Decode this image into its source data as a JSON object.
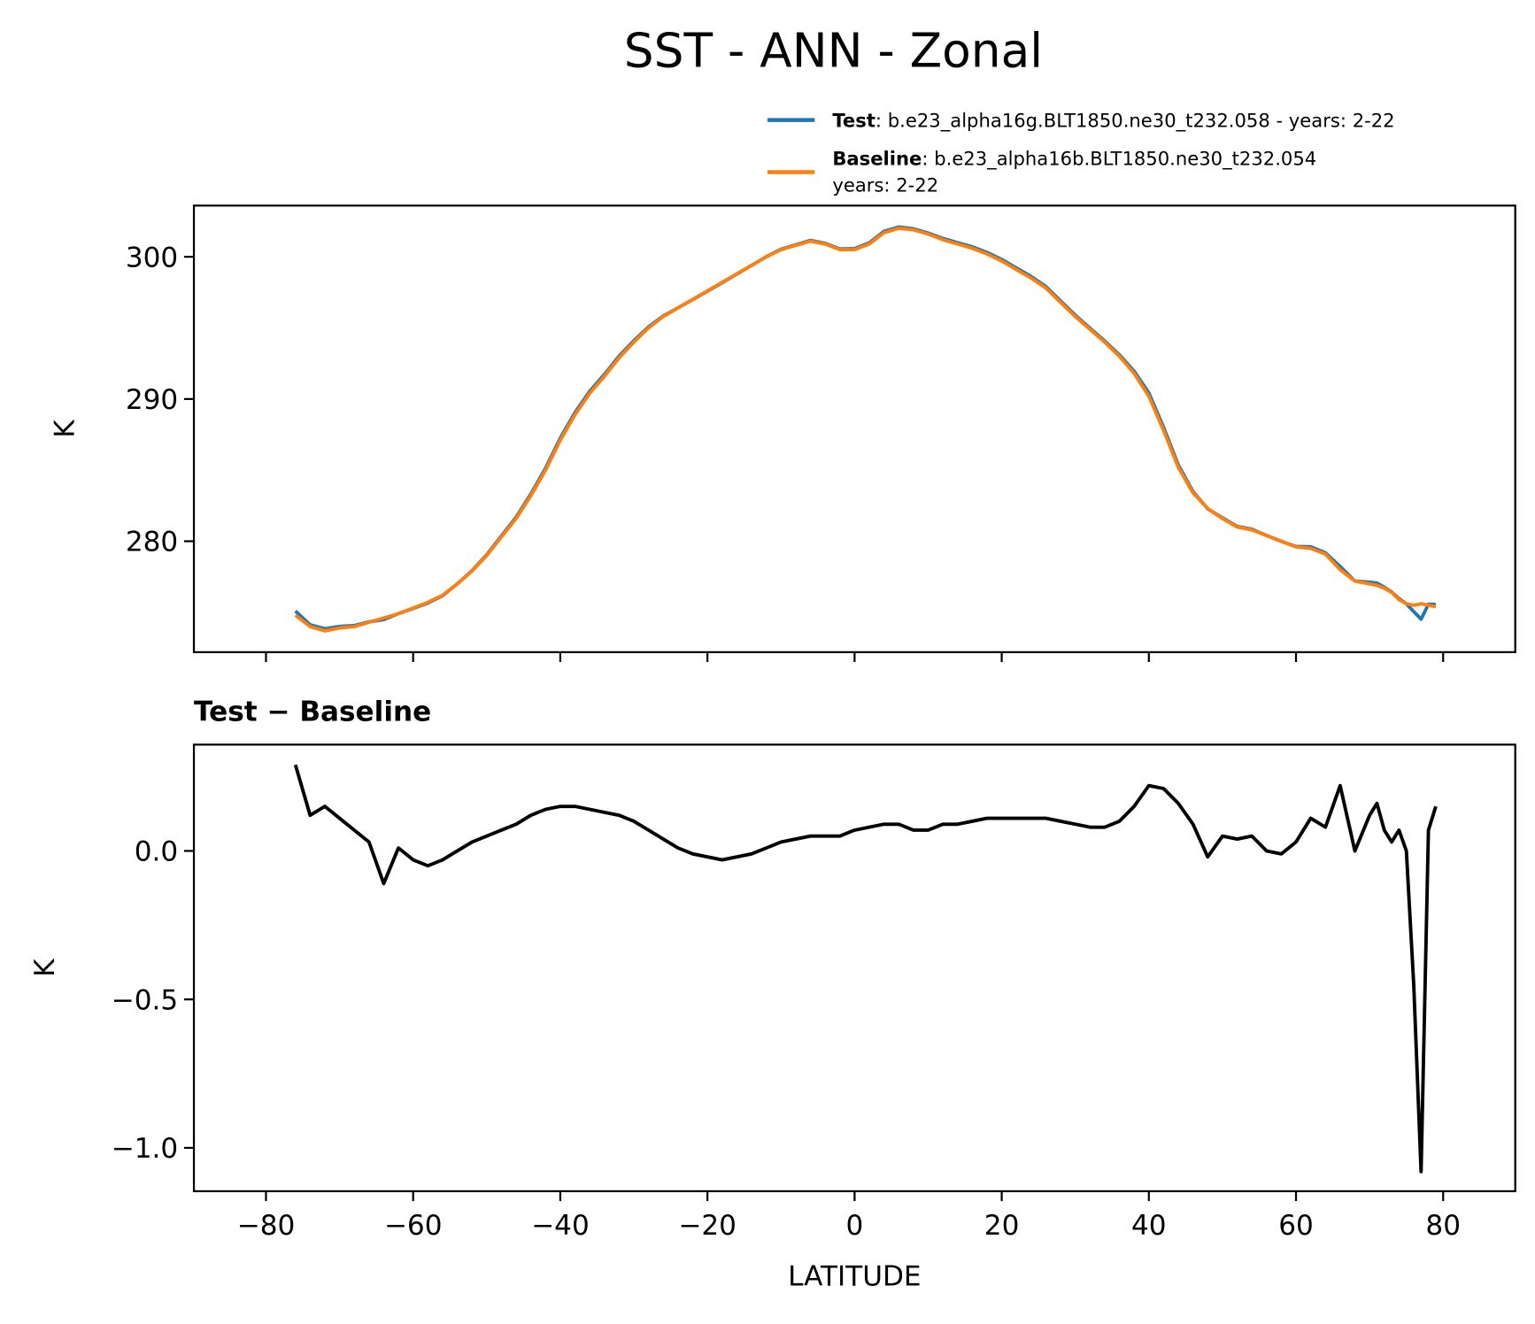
{
  "chart_data": [
    {
      "type": "line",
      "title": "SST - ANN - Zonal",
      "ylabel": "K",
      "xlim": [
        -89.8,
        89.8
      ],
      "ylim": [
        272.2,
        303.6
      ],
      "yticks": [
        280,
        290,
        300
      ],
      "xticks": [
        -80,
        -60,
        -40,
        -20,
        0,
        20,
        40,
        60,
        80
      ],
      "xtick_labels_visible": false,
      "x": [
        -76,
        -74,
        -72,
        -70,
        -68,
        -66,
        -64,
        -62,
        -60,
        -58,
        -56,
        -54,
        -52,
        -50,
        -48,
        -46,
        -44,
        -42,
        -40,
        -38,
        -36,
        -34,
        -32,
        -30,
        -28,
        -26,
        -24,
        -22,
        -20,
        -18,
        -16,
        -14,
        -12,
        -10,
        -8,
        -6,
        -4,
        -2,
        0,
        2,
        4,
        6,
        8,
        10,
        12,
        14,
        16,
        18,
        20,
        22,
        24,
        26,
        28,
        30,
        32,
        34,
        36,
        38,
        40,
        42,
        44,
        46,
        48,
        50,
        52,
        54,
        56,
        58,
        60,
        62,
        64,
        66,
        68,
        70,
        71,
        72,
        73,
        74,
        75,
        76,
        77,
        78,
        79
      ],
      "series": [
        {
          "name": "Test",
          "description": [
            ": b.e23_alpha16g.BLT1850.ne30_t232.058 - years: 2-22"
          ],
          "color": "#1f77b4",
          "values": [
            275.09,
            274.12,
            273.85,
            274.01,
            274.07,
            274.33,
            274.49,
            274.91,
            275.27,
            275.65,
            276.17,
            277.0,
            277.93,
            279.05,
            280.37,
            281.69,
            283.32,
            285.14,
            287.25,
            289.05,
            290.54,
            291.73,
            293.02,
            294.1,
            295.07,
            295.84,
            296.41,
            296.99,
            297.58,
            298.17,
            298.78,
            299.39,
            300.01,
            300.53,
            300.84,
            301.15,
            300.95,
            300.55,
            300.57,
            300.98,
            301.79,
            302.09,
            301.97,
            301.67,
            301.29,
            300.99,
            300.7,
            300.31,
            299.81,
            299.21,
            298.61,
            297.91,
            296.9,
            295.89,
            294.98,
            294.08,
            293.1,
            291.95,
            290.42,
            288.01,
            285.36,
            283.49,
            282.28,
            281.65,
            281.04,
            280.85,
            280.4,
            279.99,
            279.63,
            279.61,
            279.18,
            278.22,
            277.2,
            277.12,
            277.06,
            276.77,
            276.43,
            275.97,
            275.6,
            275.05,
            274.52,
            275.57,
            275.55
          ]
        },
        {
          "name": "Baseline",
          "description": [
            ": b.e23_alpha16b.BLT1850.ne30_t232.054",
            "years: 2-22"
          ],
          "color": "#ff7f0e",
          "values": [
            274.8,
            274.0,
            273.7,
            273.9,
            274.0,
            274.3,
            274.6,
            274.9,
            275.3,
            275.7,
            276.2,
            277.0,
            277.9,
            279.0,
            280.3,
            281.6,
            283.2,
            285.0,
            287.1,
            288.9,
            290.4,
            291.6,
            292.9,
            294.0,
            295.0,
            295.8,
            296.4,
            297.0,
            297.6,
            298.2,
            298.8,
            299.4,
            300.0,
            300.5,
            300.8,
            301.1,
            300.9,
            300.5,
            300.5,
            300.9,
            301.7,
            302.0,
            301.9,
            301.6,
            301.2,
            300.9,
            300.6,
            300.2,
            299.7,
            299.1,
            298.5,
            297.8,
            296.8,
            295.8,
            294.9,
            294.0,
            293.0,
            291.8,
            290.2,
            287.8,
            285.2,
            283.4,
            282.3,
            281.6,
            281.0,
            280.8,
            280.4,
            280.0,
            279.6,
            279.5,
            279.1,
            278.0,
            277.2,
            277.0,
            276.9,
            276.7,
            276.4,
            275.9,
            275.6,
            275.5,
            275.6,
            275.5,
            275.4
          ]
        }
      ]
    },
    {
      "type": "line",
      "title": "Test − Baseline",
      "ylabel": "K",
      "xlabel": "LATITUDE",
      "color": "#000000",
      "xlim": [
        -89.8,
        89.8
      ],
      "ylim": [
        -1.146,
        0.358
      ],
      "yticks": [
        {
          "value": -1.0,
          "label": "−1.0"
        },
        {
          "value": -0.5,
          "label": "−0.5"
        },
        {
          "value": 0.0,
          "label": "0.0"
        }
      ],
      "xticks": [
        {
          "value": -80,
          "label": "−80"
        },
        {
          "value": -60,
          "label": "−60"
        },
        {
          "value": -40,
          "label": "−40"
        },
        {
          "value": -20,
          "label": "−20"
        },
        0,
        20,
        40,
        60,
        80
      ],
      "xtick_labels_visible": true,
      "x": [
        -76,
        -74,
        -72,
        -70,
        -68,
        -66,
        -64,
        -62,
        -60,
        -58,
        -56,
        -54,
        -52,
        -50,
        -48,
        -46,
        -44,
        -42,
        -40,
        -38,
        -36,
        -34,
        -32,
        -30,
        -28,
        -26,
        -24,
        -22,
        -20,
        -18,
        -16,
        -14,
        -12,
        -10,
        -8,
        -6,
        -4,
        -2,
        0,
        2,
        4,
        6,
        8,
        10,
        12,
        14,
        16,
        18,
        20,
        22,
        24,
        26,
        28,
        30,
        32,
        34,
        36,
        38,
        40,
        42,
        44,
        46,
        48,
        50,
        52,
        54,
        56,
        58,
        60,
        62,
        64,
        66,
        68,
        70,
        71,
        72,
        73,
        74,
        75,
        76,
        77,
        78,
        79
      ],
      "values": [
        0.29,
        0.12,
        0.15,
        0.11,
        0.07,
        0.03,
        -0.11,
        0.01,
        -0.03,
        -0.05,
        -0.03,
        0.0,
        0.03,
        0.05,
        0.07,
        0.09,
        0.12,
        0.14,
        0.15,
        0.15,
        0.14,
        0.13,
        0.12,
        0.1,
        0.07,
        0.04,
        0.01,
        -0.01,
        -0.02,
        -0.03,
        -0.02,
        -0.01,
        0.01,
        0.03,
        0.04,
        0.05,
        0.05,
        0.05,
        0.07,
        0.08,
        0.09,
        0.09,
        0.07,
        0.07,
        0.09,
        0.09,
        0.1,
        0.11,
        0.11,
        0.11,
        0.11,
        0.11,
        0.1,
        0.09,
        0.08,
        0.08,
        0.1,
        0.15,
        0.22,
        0.21,
        0.16,
        0.09,
        -0.02,
        0.05,
        0.04,
        0.05,
        0.0,
        -0.01,
        0.03,
        0.11,
        0.08,
        0.22,
        0.0,
        0.12,
        0.16,
        0.07,
        0.03,
        0.07,
        0.0,
        -0.45,
        -1.08,
        0.07,
        0.15
      ]
    }
  ]
}
